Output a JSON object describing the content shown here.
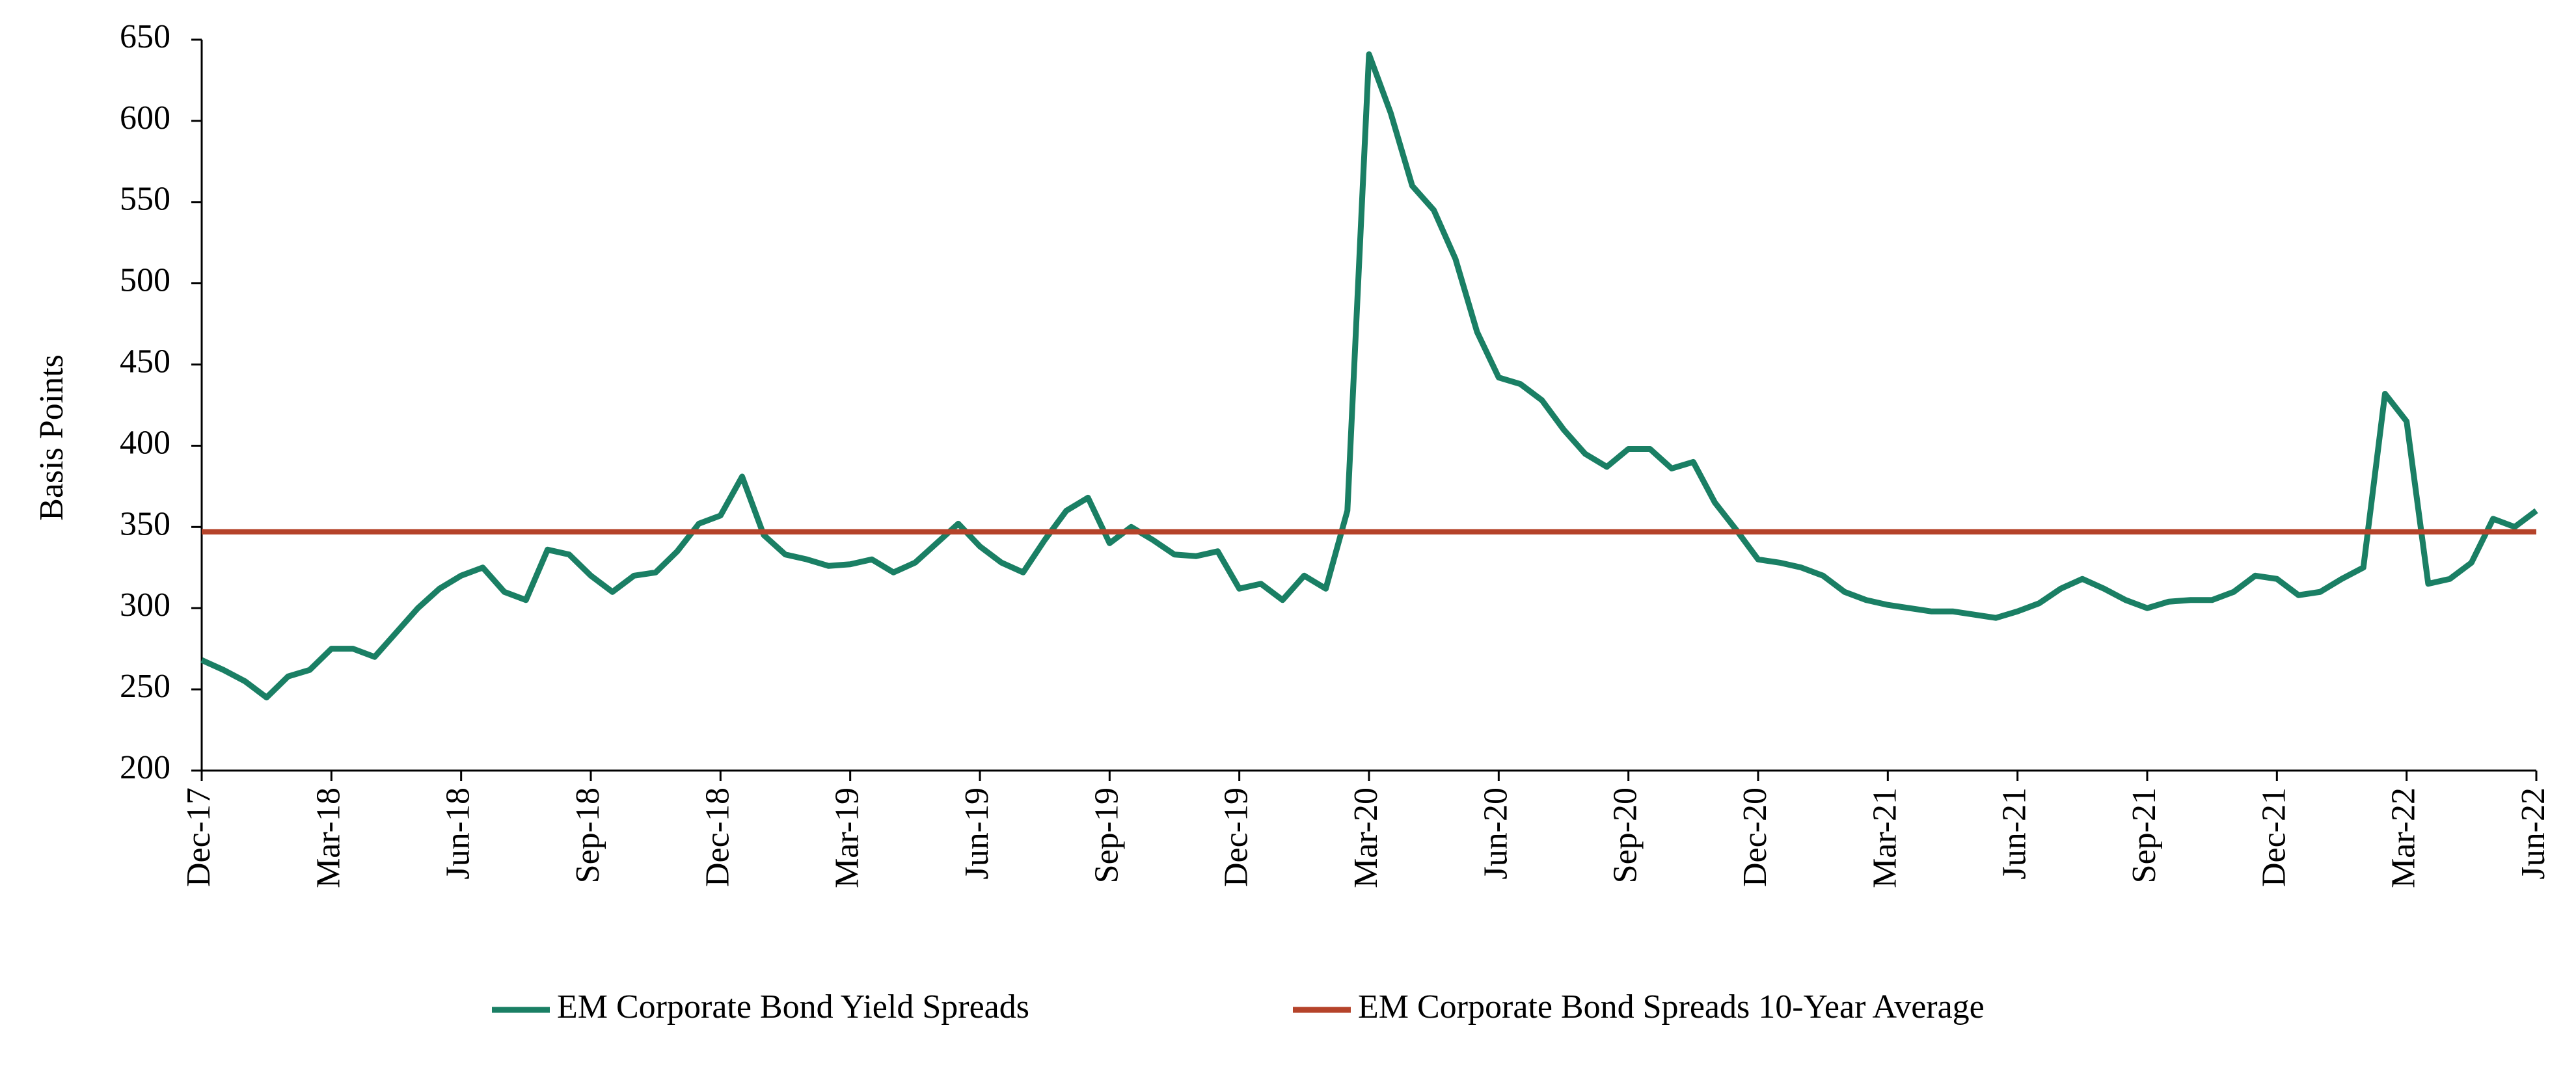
{
  "chart_data": {
    "type": "line",
    "y_label": "Basis Points",
    "categories": [
      "Dec-17",
      null,
      null,
      null,
      null,
      null,
      "Mar-18",
      null,
      null,
      null,
      null,
      null,
      "Jun-18",
      null,
      null,
      null,
      null,
      null,
      "Sep-18",
      null,
      null,
      null,
      null,
      null,
      "Dec-18",
      null,
      null,
      null,
      null,
      null,
      "Mar-19",
      null,
      null,
      null,
      null,
      null,
      "Jun-19",
      null,
      null,
      null,
      null,
      null,
      "Sep-19",
      null,
      null,
      null,
      null,
      null,
      "Dec-19",
      null,
      null,
      null,
      null,
      null,
      "Mar-20",
      null,
      null,
      null,
      null,
      null,
      "Jun-20",
      null,
      null,
      null,
      null,
      null,
      "Sep-20",
      null,
      null,
      null,
      null,
      null,
      "Dec-20",
      null,
      null,
      null,
      null,
      null,
      "Mar-21",
      null,
      null,
      null,
      null,
      null,
      "Jun-21",
      null,
      null,
      null,
      null,
      null,
      "Sep-21",
      null,
      null,
      null,
      null,
      null,
      "Dec-21",
      null,
      null,
      null,
      null,
      null,
      "Mar-22",
      null,
      null,
      null,
      null,
      null,
      "Jun-22"
    ],
    "series": [
      {
        "name": "EM Corporate Bond Yield Spreads",
        "color": "#1a7f64",
        "values": [
          268,
          262,
          255,
          245,
          258,
          262,
          275,
          275,
          270,
          285,
          300,
          312,
          320,
          325,
          310,
          305,
          336,
          333,
          320,
          310,
          320,
          322,
          335,
          352,
          357,
          381,
          345,
          333,
          330,
          326,
          327,
          330,
          322,
          328,
          340,
          352,
          338,
          328,
          322,
          342,
          360,
          368,
          340,
          350,
          342,
          333,
          332,
          335,
          312,
          315,
          305,
          320,
          312,
          360,
          641,
          605,
          560,
          545,
          515,
          470,
          442,
          438,
          428,
          410,
          395,
          387,
          398,
          398,
          386,
          390,
          365,
          348,
          330,
          328,
          325,
          320,
          310,
          305,
          302,
          300,
          298,
          298,
          296,
          294,
          298,
          303,
          312,
          318,
          312,
          305,
          300,
          304,
          305,
          305,
          310,
          320,
          318,
          308,
          310,
          318,
          325,
          432,
          415,
          315,
          318,
          328,
          355,
          350,
          360
        ]
      }
    ],
    "reference_line": {
      "name": "EM Corporate Bond Spreads 10-Year Average",
      "color": "#b5432a",
      "value": 347
    },
    "ylim": [
      200,
      650
    ],
    "yticks": [
      200,
      250,
      300,
      350,
      400,
      450,
      500,
      550,
      600,
      650
    ],
    "grid": false
  }
}
